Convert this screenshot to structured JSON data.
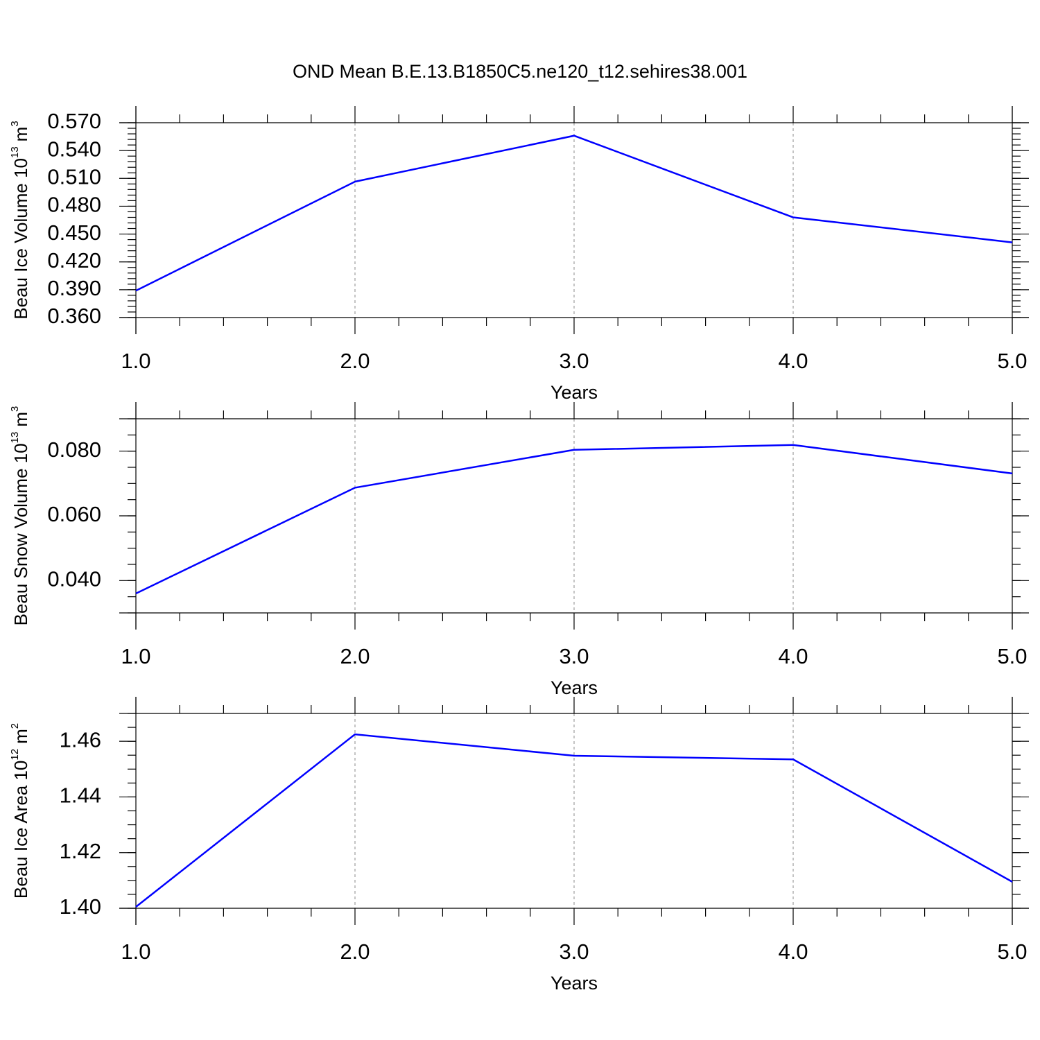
{
  "chart_data": [
    {
      "type": "line",
      "title": "OND Mean B.E.13.B1850C5.ne120_t12.sehires38.001",
      "ylabel_parts": [
        "Beau Ice Volume 10",
        "13",
        "m",
        "3"
      ],
      "xlabel": "Years",
      "x": [
        1,
        2,
        3,
        4,
        5
      ],
      "series": [
        {
          "color": "#0000ff",
          "values": [
            0.389,
            0.5065,
            0.556,
            0.468,
            0.441
          ]
        }
      ],
      "xlim": [
        1,
        5
      ],
      "ylim": [
        0.36,
        0.57
      ],
      "xticks": [
        {
          "value": 1,
          "label": "1.0"
        },
        {
          "value": 2,
          "label": "2.0"
        },
        {
          "value": 3,
          "label": "3.0"
        },
        {
          "value": 4,
          "label": "4.0"
        },
        {
          "value": 5,
          "label": "5.0"
        }
      ],
      "yticks": [
        {
          "value": 0.36,
          "label": "0.360"
        },
        {
          "value": 0.39,
          "label": "0.390"
        },
        {
          "value": 0.42,
          "label": "0.420"
        },
        {
          "value": 0.45,
          "label": "0.450"
        },
        {
          "value": 0.48,
          "label": "0.480"
        },
        {
          "value": 0.51,
          "label": "0.510"
        },
        {
          "value": 0.54,
          "label": "0.540"
        },
        {
          "value": 0.57,
          "label": "0.570"
        }
      ],
      "x_minor_divisions": 5,
      "y_minor_divisions": 5,
      "grid": "x"
    },
    {
      "type": "line",
      "ylabel_parts": [
        "Beau Snow Volume 10",
        "13",
        "m",
        "3"
      ],
      "xlabel": "Years",
      "x": [
        1,
        2,
        3,
        4,
        5
      ],
      "series": [
        {
          "color": "#0000ff",
          "values": [
            0.036,
            0.0687,
            0.0804,
            0.0819,
            0.0731
          ]
        }
      ],
      "xlim": [
        1,
        5
      ],
      "ylim": [
        0.03,
        0.09
      ],
      "xticks": [
        {
          "value": 1,
          "label": "1.0"
        },
        {
          "value": 2,
          "label": "2.0"
        },
        {
          "value": 3,
          "label": "3.0"
        },
        {
          "value": 4,
          "label": "4.0"
        },
        {
          "value": 5,
          "label": "5.0"
        }
      ],
      "yticks": [
        {
          "value": 0.04,
          "label": "0.040"
        },
        {
          "value": 0.06,
          "label": "0.060"
        },
        {
          "value": 0.08,
          "label": "0.080"
        }
      ],
      "x_minor_divisions": 5,
      "y_minor_divisions": 4,
      "grid": "x"
    },
    {
      "type": "line",
      "ylabel_parts": [
        "Beau Ice Area 10",
        "12",
        "m",
        "2"
      ],
      "xlabel": "Years",
      "x": [
        1,
        2,
        3,
        4,
        5
      ],
      "series": [
        {
          "color": "#0000ff",
          "values": [
            1.4005,
            1.4625,
            1.4548,
            1.4535,
            1.4095
          ]
        }
      ],
      "xlim": [
        1,
        5
      ],
      "ylim": [
        1.4,
        1.47
      ],
      "xticks": [
        {
          "value": 1,
          "label": "1.0"
        },
        {
          "value": 2,
          "label": "2.0"
        },
        {
          "value": 3,
          "label": "3.0"
        },
        {
          "value": 4,
          "label": "4.0"
        },
        {
          "value": 5,
          "label": "5.0"
        }
      ],
      "yticks": [
        {
          "value": 1.4,
          "label": "1.40"
        },
        {
          "value": 1.42,
          "label": "1.42"
        },
        {
          "value": 1.44,
          "label": "1.44"
        },
        {
          "value": 1.46,
          "label": "1.46"
        }
      ],
      "x_minor_divisions": 5,
      "y_minor_divisions": 4,
      "grid": "x"
    }
  ]
}
